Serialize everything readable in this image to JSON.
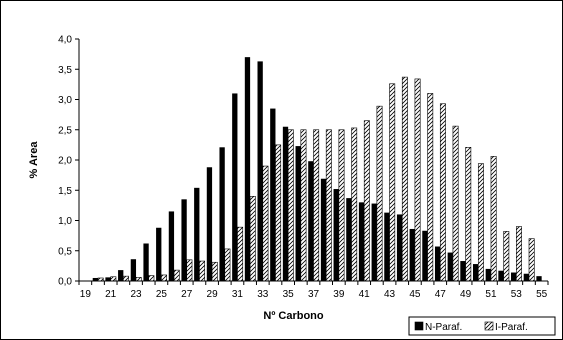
{
  "chart_data": {
    "type": "bar",
    "xlabel": "Nº Carbono",
    "ylabel": "% Area",
    "ylim": [
      0,
      4
    ],
    "y_ticks": [
      "0,0",
      "0,5",
      "1,0",
      "1,5",
      "2,0",
      "2,5",
      "3,0",
      "3,5",
      "4,0"
    ],
    "categories": [
      19,
      20,
      21,
      22,
      23,
      24,
      25,
      26,
      27,
      28,
      29,
      30,
      31,
      32,
      33,
      34,
      35,
      36,
      37,
      38,
      39,
      40,
      41,
      42,
      43,
      44,
      45,
      46,
      47,
      48,
      49,
      50,
      51,
      52,
      53,
      54,
      55
    ],
    "x_tick_labels": [
      "19",
      "21",
      "23",
      "25",
      "27",
      "29",
      "31",
      "33",
      "35",
      "37",
      "39",
      "41",
      "43",
      "45",
      "47",
      "49",
      "51",
      "53",
      "55"
    ],
    "series": [
      {
        "name": "N-Paraf.",
        "color": "#000000",
        "values": [
          0,
          0.05,
          0.06,
          0.18,
          0.36,
          0.62,
          0.88,
          1.15,
          1.35,
          1.54,
          1.88,
          2.21,
          3.1,
          3.7,
          3.63,
          2.85,
          2.55,
          2.23,
          1.98,
          1.69,
          1.52,
          1.37,
          1.3,
          1.28,
          1.13,
          1.1,
          0.86,
          0.83,
          0.57,
          0.47,
          0.33,
          0.28,
          0.2,
          0.17,
          0.14,
          0.12,
          0.08
        ]
      },
      {
        "name": "I-Paraf.",
        "pattern": "diagonal-hatch",
        "values": [
          0,
          0.05,
          0.07,
          0.08,
          0.06,
          0.09,
          0.1,
          0.18,
          0.35,
          0.33,
          0.31,
          0.53,
          0.89,
          1.4,
          1.9,
          2.25,
          2.5,
          2.5,
          2.5,
          2.5,
          2.5,
          2.53,
          2.65,
          2.89,
          3.26,
          3.37,
          3.34,
          3.1,
          2.93,
          2.56,
          2.21,
          1.94,
          2.06,
          0.82,
          0.9,
          0.7,
          0
        ]
      }
    ],
    "legend": {
      "position": "bottom-right"
    },
    "grid": false
  }
}
